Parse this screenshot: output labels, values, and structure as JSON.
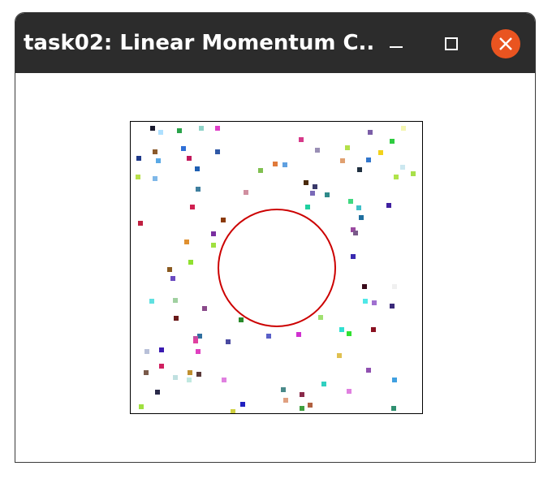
{
  "window": {
    "title": "task02: Linear Momentum C..."
  },
  "controls": {
    "minimize_icon": "minimize-icon",
    "maximize_icon": "maximize-icon",
    "close_icon": "close-icon"
  },
  "colors": {
    "titlebar": "#2c2c2c",
    "close_button": "#e95420",
    "circle": "#cc0000"
  }
}
